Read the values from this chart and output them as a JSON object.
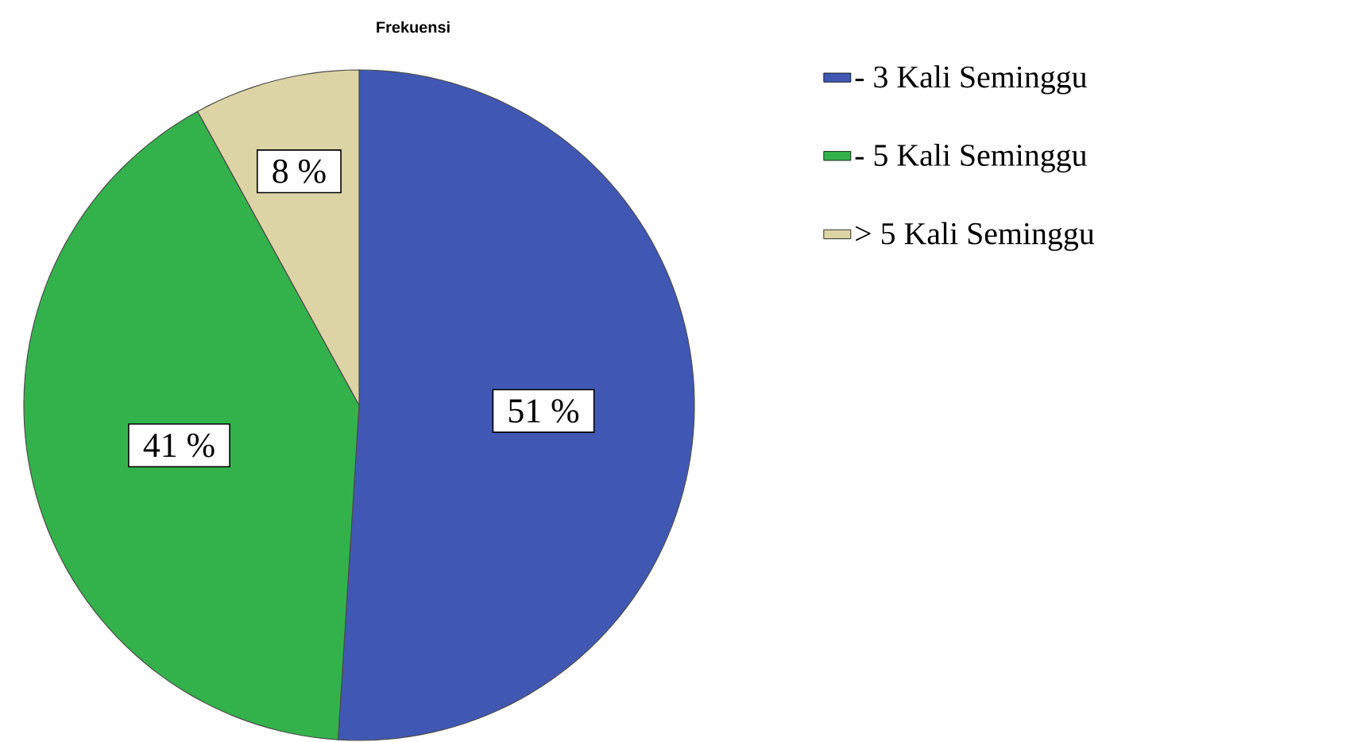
{
  "chart_data": {
    "type": "pie",
    "title": "Frekuensi",
    "categories": [
      "- 3 Kali Seminggu",
      "- 5 Kali Seminggu",
      "> 5 Kali Seminggu"
    ],
    "values": [
      51,
      41,
      8
    ],
    "colors": [
      "#4058b3",
      "#33b24b",
      "#dcd4a4"
    ],
    "value_labels": [
      "51 %",
      "41 %",
      "8 %"
    ],
    "legend": "right"
  }
}
